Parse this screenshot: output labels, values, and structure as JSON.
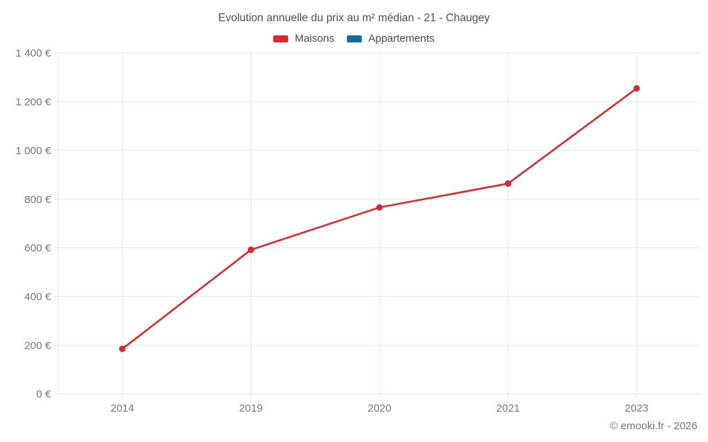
{
  "chart": {
    "title": "Evolution annuelle du prix au m² médian - 21 - Chaugey",
    "footer": "© emooki.fr - 2026"
  },
  "legend": {
    "items": [
      {
        "label": "Maisons",
        "color": "#d62b30"
      },
      {
        "label": "Appartements",
        "color": "#1769a0"
      }
    ]
  },
  "chart_data": {
    "type": "line",
    "title": "Evolution annuelle du prix au m² médian - 21 - Chaugey",
    "categories": [
      "2014",
      "2019",
      "2020",
      "2021",
      "2023"
    ],
    "series": [
      {
        "name": "Maisons",
        "color": "#d62b30",
        "values": [
          185,
          592,
          766,
          864,
          1255
        ]
      },
      {
        "name": "Appartements",
        "color": "#1769a0",
        "values": []
      }
    ],
    "xlabel": "",
    "ylabel": "",
    "ylim": [
      0,
      1400
    ],
    "ytick_step": 200,
    "ytick_labels": [
      "0 €",
      "200 €",
      "400 €",
      "600 €",
      "800 €",
      "1 000 €",
      "1 200 €",
      "1 400 €"
    ],
    "grid": true,
    "legend_position": "top",
    "grid_color": "#e5e5e5",
    "tick_text_color": "#757575"
  }
}
